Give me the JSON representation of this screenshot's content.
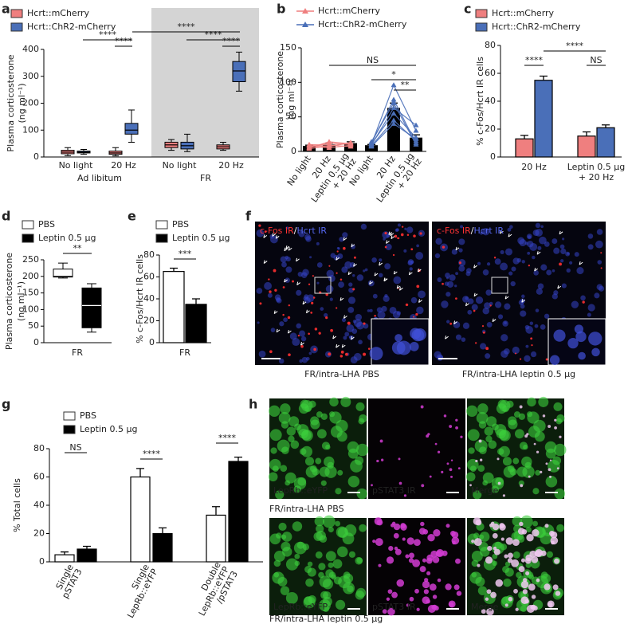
{
  "chart_data": [
    {
      "panel": "a",
      "type": "box",
      "ylabel": [
        "Plasma corticosterone",
        "(ng ml⁻¹)"
      ],
      "categories": [
        "No light",
        "20 Hz",
        "No light",
        "20 Hz"
      ],
      "groups": [
        "Ad libitum",
        "FR"
      ],
      "ylim": [
        0,
        400
      ],
      "yticks": [
        0,
        100,
        200,
        300,
        400
      ],
      "series": [
        {
          "name": "Hcrt::mCherry",
          "color": "#ef7f7f",
          "boxes": [
            {
              "whislo": 5,
              "q1": 12,
              "med": 18,
              "q3": 25,
              "whishi": 35
            },
            {
              "whislo": 4,
              "q1": 10,
              "med": 15,
              "q3": 22,
              "whishi": 35
            },
            {
              "whislo": 25,
              "q1": 35,
              "med": 45,
              "q3": 55,
              "whishi": 65
            },
            {
              "whislo": 25,
              "q1": 30,
              "med": 38,
              "q3": 45,
              "whishi": 55
            }
          ]
        },
        {
          "name": "Hcrt::ChR2-mCherry",
          "color": "#4a6fb8",
          "boxes": [
            {
              "whislo": 10,
              "q1": 15,
              "med": 18,
              "q3": 22,
              "whishi": 28
            },
            {
              "whislo": 55,
              "q1": 85,
              "med": 100,
              "q3": 125,
              "whishi": 175
            },
            {
              "whislo": 20,
              "q1": 30,
              "med": 42,
              "q3": 55,
              "whishi": 85
            },
            {
              "whislo": 245,
              "q1": 280,
              "med": 320,
              "q3": 355,
              "whishi": 390
            }
          ]
        }
      ],
      "annotations": [
        "****",
        "****",
        "****",
        "****",
        "****"
      ]
    },
    {
      "panel": "b",
      "type": "line",
      "ylabel": [
        "Plasma corticosterone",
        "(ng ml⁻¹)"
      ],
      "categories": [
        "No light",
        "20 Hz",
        [
          "Leptin 0.5 μg",
          "+ 20 Hz"
        ],
        "No light",
        "20 Hz",
        [
          "Leptin 0.5 μg",
          "+ 20 Hz"
        ]
      ],
      "ylim": [
        0,
        150
      ],
      "yticks": [
        0,
        50,
        100,
        150
      ],
      "bars": {
        "color": "#000000",
        "values": [
          8,
          10,
          12,
          9,
          63,
          20
        ],
        "errors": [
          1,
          2,
          2,
          1,
          7,
          4
        ]
      },
      "series": [
        {
          "name": "Hcrt::mCherry",
          "color": "#ef7f7f",
          "subjects": [
            [
              4,
              8,
              12,
              null,
              null,
              null
            ],
            [
              6,
              12,
              10,
              null,
              null,
              null
            ],
            [
              8,
              5,
              9,
              null,
              null,
              null
            ],
            [
              10,
              9,
              7,
              null,
              null,
              null
            ],
            [
              5,
              14,
              11,
              null,
              null,
              null
            ],
            [
              9,
              7,
              13,
              null,
              null,
              null
            ]
          ]
        },
        {
          "name": "Hcrt::ChR2-mCherry",
          "color": "#4a6fb8",
          "subjects": [
            [
              null,
              null,
              null,
              8,
              45,
              15
            ],
            [
              null,
              null,
              null,
              10,
              96,
              30
            ],
            [
              null,
              null,
              null,
              12,
              75,
              12
            ],
            [
              null,
              null,
              null,
              9,
              63,
              38
            ],
            [
              null,
              null,
              null,
              11,
              55,
              20
            ],
            [
              null,
              null,
              null,
              14,
              70,
              10
            ],
            [
              null,
              null,
              null,
              7,
              40,
              18
            ]
          ]
        }
      ],
      "annotations": [
        "NS",
        "*",
        "**"
      ]
    },
    {
      "panel": "c",
      "type": "bar",
      "ylabel": [
        "% c-Fos/Hcrt IR cells"
      ],
      "categories": [
        "20 Hz",
        [
          "Leptin 0.5 μg",
          "+ 20 Hz"
        ]
      ],
      "ylim": [
        0,
        80
      ],
      "yticks": [
        0,
        20,
        40,
        60,
        80
      ],
      "series": [
        {
          "name": "Hcrt::mCherry",
          "color": "#ef7f7f",
          "values": [
            13,
            15
          ],
          "errors": [
            2.5,
            3
          ]
        },
        {
          "name": "Hcrt::ChR2-mCherry",
          "color": "#4a6fb8",
          "values": [
            55,
            21
          ],
          "errors": [
            3,
            2
          ]
        }
      ],
      "annotations": [
        "****",
        "****",
        "NS"
      ]
    },
    {
      "panel": "d",
      "type": "box",
      "ylabel": [
        "Plasma corticosterone",
        "(ng ml⁻¹)"
      ],
      "categories": [
        "FR"
      ],
      "ylim": [
        0,
        250
      ],
      "yticks": [
        0,
        50,
        100,
        150,
        200,
        250
      ],
      "series": [
        {
          "name": "PBS",
          "color": "#ffffff",
          "boxes": [
            {
              "whislo": 195,
              "q1": 198,
              "med": 200,
              "q3": 222,
              "whishi": 240
            }
          ]
        },
        {
          "name": "Leptin 0.5 μg",
          "color": "#000000",
          "boxes": [
            {
              "whislo": 32,
              "q1": 45,
              "med": 112,
              "q3": 165,
              "whishi": 178
            }
          ]
        }
      ],
      "annotations": [
        "**"
      ]
    },
    {
      "panel": "e",
      "type": "bar",
      "ylabel": [
        "% c-Fos/Hcrt IR cells"
      ],
      "categories": [
        "FR"
      ],
      "ylim": [
        0,
        80
      ],
      "yticks": [
        0,
        20,
        40,
        60,
        80
      ],
      "series": [
        {
          "name": "PBS",
          "color": "#ffffff",
          "values": [
            65
          ],
          "errors": [
            3
          ]
        },
        {
          "name": "Leptin 0.5 μg",
          "color": "#000000",
          "values": [
            35
          ],
          "errors": [
            5
          ]
        }
      ],
      "annotations": [
        "***"
      ]
    },
    {
      "panel": "g",
      "type": "bar",
      "ylabel": [
        "% Total cells"
      ],
      "categories": [
        [
          "Single",
          "pSTAT3"
        ],
        [
          "Single",
          "LepRb::eYFP"
        ],
        [
          "Double",
          "LepRb::eYFP",
          "/pSTAT3"
        ]
      ],
      "ylim": [
        0,
        80
      ],
      "yticks": [
        0,
        20,
        40,
        60,
        80
      ],
      "series": [
        {
          "name": "PBS",
          "color": "#ffffff",
          "values": [
            5,
            60,
            33
          ],
          "errors": [
            2,
            6,
            6
          ]
        },
        {
          "name": "Leptin 0.5 μg",
          "color": "#000000",
          "values": [
            9,
            20,
            71
          ],
          "errors": [
            2,
            4,
            3
          ]
        }
      ],
      "annotations": [
        "NS",
        "****",
        "****"
      ]
    }
  ],
  "image_panels": [
    {
      "panel": "f",
      "images": [
        {
          "caption": "FR/intra-LHA PBS",
          "channels": [
            {
              "text": "c-Fos IR",
              "color": "#ff3333"
            },
            {
              "text": "/",
              "color": "#ffffff"
            },
            {
              "text": "Hcrt IR",
              "color": "#5566ee"
            }
          ]
        },
        {
          "caption": "FR/intra-LHA leptin 0.5 μg",
          "channels": [
            {
              "text": "c-Fos IR",
              "color": "#ff3333"
            },
            {
              "text": "/",
              "color": "#ffffff"
            },
            {
              "text": "Hcrt IR",
              "color": "#5566ee"
            }
          ]
        }
      ]
    },
    {
      "panel": "h",
      "channels": [
        {
          "text": "LepRb::eYFP",
          "color": "#44dd44"
        },
        {
          "text": "pSTAT3 IR",
          "color": "#dd44dd"
        },
        {
          "text": "Merge",
          "color": "#ffffff"
        }
      ],
      "rows": [
        "FR/intra-LHA PBS",
        "FR/intra-LHA leptin 0.5 μg"
      ]
    }
  ]
}
